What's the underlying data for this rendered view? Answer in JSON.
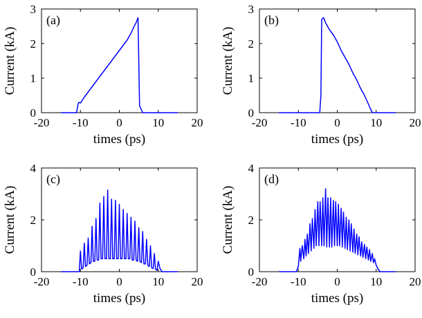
{
  "chart_data": [
    {
      "type": "line",
      "panel_label": "(a)",
      "xlabel": "times (ps)",
      "ylabel": "Current (kA)",
      "xlim": [
        -20,
        20
      ],
      "ylim": [
        0,
        3
      ],
      "xticks": [
        -20,
        -10,
        0,
        10,
        20
      ],
      "yticks": [
        0,
        1,
        2,
        3
      ],
      "color": "#0000ff",
      "x": [
        -15,
        -11,
        -10.6,
        -10.4,
        -10,
        -9,
        -8,
        -7,
        -6,
        -5,
        -4,
        -3,
        -2,
        -1,
        0,
        1,
        2,
        3,
        3.8,
        4.3,
        4.8,
        5.2,
        6,
        10,
        15
      ],
      "y": [
        0,
        0,
        0.25,
        0.3,
        0.28,
        0.45,
        0.6,
        0.75,
        0.9,
        1.05,
        1.2,
        1.35,
        1.5,
        1.65,
        1.8,
        1.95,
        2.1,
        2.3,
        2.5,
        2.6,
        2.75,
        0.2,
        0,
        0,
        0
      ]
    },
    {
      "type": "line",
      "panel_label": "(b)",
      "xlabel": "times (ps)",
      "ylabel": "Current (kA)",
      "xlim": [
        -20,
        20
      ],
      "ylim": [
        0,
        3
      ],
      "xticks": [
        -20,
        -10,
        0,
        10,
        20
      ],
      "yticks": [
        0,
        1,
        2,
        3
      ],
      "color": "#0000ff",
      "x": [
        -15,
        -4.5,
        -4.2,
        -4,
        -3.5,
        -3,
        -2,
        -1,
        0,
        1,
        2,
        3,
        4,
        5,
        6,
        7,
        8,
        8.5,
        9,
        15
      ],
      "y": [
        0,
        0,
        0.5,
        2.7,
        2.75,
        2.6,
        2.4,
        2.25,
        2.05,
        1.8,
        1.6,
        1.4,
        1.15,
        0.95,
        0.7,
        0.5,
        0.25,
        0.12,
        0,
        0
      ]
    },
    {
      "type": "line",
      "panel_label": "(c)",
      "xlabel": "times (ps)",
      "ylabel": "Current (kA)",
      "xlim": [
        -20,
        20
      ],
      "ylim": [
        0,
        4
      ],
      "xticks": [
        -20,
        -10,
        0,
        10,
        20
      ],
      "yticks": [
        0,
        2,
        4
      ],
      "color": "#0000ff",
      "x": [
        -15,
        -10.3,
        -10,
        -9.7,
        -9.3,
        -9,
        -8.7,
        -8.3,
        -8,
        -7.7,
        -7.3,
        -7,
        -6.7,
        -6.3,
        -6,
        -5.7,
        -5.3,
        -5,
        -4.7,
        -4.3,
        -4,
        -3.7,
        -3.3,
        -3,
        -2.7,
        -2.3,
        -2,
        -1.7,
        -1.3,
        -1,
        -0.7,
        -0.3,
        0,
        0.3,
        0.7,
        1,
        1.3,
        1.7,
        2,
        2.3,
        2.7,
        3,
        3.3,
        3.7,
        4,
        4.3,
        4.7,
        5,
        5.3,
        5.7,
        6,
        6.3,
        6.7,
        7,
        7.3,
        7.7,
        8,
        8.3,
        8.7,
        9,
        9.3,
        9.7,
        10,
        10.5,
        11,
        15
      ],
      "y": [
        0,
        0,
        0.8,
        0.1,
        0.15,
        1.1,
        0.2,
        0.25,
        1.3,
        0.3,
        0.35,
        1.75,
        0.4,
        0.4,
        2.05,
        0.45,
        0.45,
        2.65,
        0.5,
        0.5,
        2.9,
        0.5,
        0.5,
        3.15,
        0.5,
        0.5,
        2.8,
        0.5,
        0.5,
        2.75,
        0.5,
        0.5,
        2.6,
        0.5,
        0.5,
        2.4,
        0.5,
        0.5,
        2.25,
        0.5,
        0.5,
        2.1,
        0.45,
        0.45,
        1.95,
        0.45,
        0.4,
        1.7,
        0.4,
        0.35,
        1.55,
        0.3,
        0.3,
        1.25,
        0.25,
        0.2,
        1.0,
        0.15,
        0.12,
        0.7,
        0.1,
        0.05,
        0.4,
        0.1,
        0,
        0
      ]
    },
    {
      "type": "line",
      "panel_label": "(d)",
      "xlabel": "times (ps)",
      "ylabel": "Current (kA)",
      "xlim": [
        -20,
        20
      ],
      "ylim": [
        0,
        4
      ],
      "xticks": [
        -20,
        -10,
        0,
        10,
        20
      ],
      "yticks": [
        0,
        2,
        4
      ],
      "color": "#0000ff",
      "x": [
        -15,
        -10.5,
        -10,
        -9.6,
        -9.4,
        -9,
        -8.6,
        -8.3,
        -8,
        -7.7,
        -7.4,
        -7,
        -6.7,
        -6.4,
        -6,
        -5.7,
        -5.4,
        -5,
        -4.7,
        -4.4,
        -4,
        -3.7,
        -3.4,
        -3,
        -2.7,
        -2.4,
        -2,
        -1.7,
        -1.4,
        -1,
        -0.7,
        -0.4,
        0,
        0.3,
        0.6,
        1,
        1.3,
        1.6,
        2,
        2.3,
        2.6,
        3,
        3.3,
        3.6,
        4,
        4.3,
        4.6,
        5,
        5.3,
        5.6,
        6,
        6.3,
        6.6,
        7,
        7.3,
        7.6,
        8,
        8.3,
        8.6,
        9,
        9.3,
        9.6,
        10,
        10.5,
        11,
        15
      ],
      "y": [
        0,
        0,
        0.2,
        0.9,
        0.4,
        1.0,
        0.5,
        1.25,
        0.6,
        1.45,
        0.7,
        1.85,
        0.8,
        2.05,
        0.9,
        2.4,
        1.0,
        2.7,
        1.0,
        2.7,
        1.0,
        2.85,
        1.0,
        3.2,
        0.95,
        2.85,
        0.95,
        2.85,
        0.95,
        2.75,
        1.0,
        2.7,
        1.0,
        2.6,
        1.0,
        2.45,
        0.95,
        2.3,
        0.9,
        2.1,
        0.85,
        2.0,
        0.8,
        1.85,
        0.75,
        1.65,
        0.7,
        1.45,
        0.65,
        1.35,
        0.6,
        1.15,
        0.55,
        1.05,
        0.5,
        0.95,
        0.45,
        0.85,
        0.4,
        0.7,
        0.35,
        0.5,
        0.25,
        0.1,
        0,
        0
      ]
    }
  ]
}
